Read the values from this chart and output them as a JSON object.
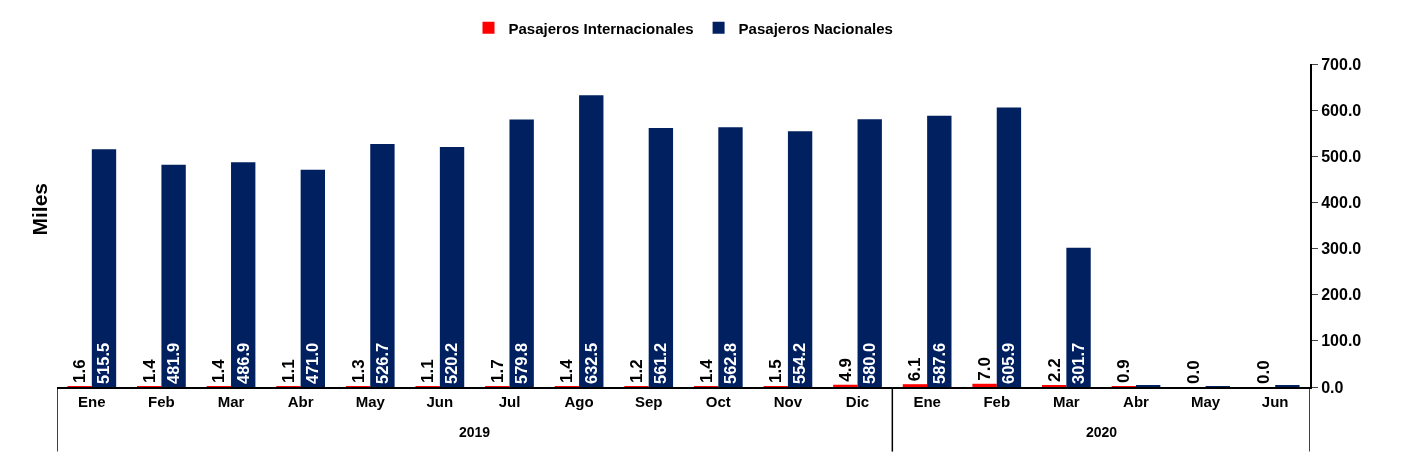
{
  "chart_data": {
    "type": "bar",
    "categories": [
      "Ene",
      "Feb",
      "Mar",
      "Abr",
      "May",
      "Jun",
      "Jul",
      "Ago",
      "Sep",
      "Oct",
      "Nov",
      "Dic",
      "Ene",
      "Feb",
      "Mar",
      "Abr",
      "May",
      "Jun"
    ],
    "series": [
      {
        "name": "Pasajeros Internacionales",
        "color": "#ff0000",
        "values": [
          1.6,
          1.4,
          1.4,
          1.1,
          1.3,
          1.1,
          1.7,
          1.4,
          1.2,
          1.4,
          1.5,
          4.9,
          6.1,
          7.0,
          2.2,
          0.9,
          0.0,
          0.0
        ],
        "value_labels": [
          "1.6",
          "1.4",
          "1.4",
          "1.1",
          "1.3",
          "1.1",
          "1.7",
          "1.4",
          "1.2",
          "1.4",
          "1.5",
          "4.9",
          "6.1",
          "7.0",
          "2.2",
          "0.9",
          "0.0",
          "0.0"
        ]
      },
      {
        "name": "Pasajeros Nacionales",
        "color": "#002060",
        "values": [
          515.5,
          481.9,
          486.9,
          471.0,
          526.7,
          520.2,
          579.8,
          632.5,
          561.2,
          562.8,
          554.2,
          580.0,
          587.6,
          605.9,
          301.7,
          3,
          2,
          4
        ],
        "value_labels": [
          "515.5",
          "481.9",
          "486.9",
          "471.0",
          "526.7",
          "520.2",
          "579.8",
          "632.5",
          "561.2",
          "562.8",
          "554.2",
          "580.0",
          "587.6",
          "605.9",
          "301.7",
          null,
          null,
          null
        ]
      }
    ],
    "ylabel": "Miles",
    "annotations": [
      "2019",
      "2020"
    ],
    "ylim": [
      0,
      700
    ],
    "yticks": [
      {
        "value": 0,
        "label": "0.0"
      },
      {
        "value": 100,
        "label": "100.0"
      },
      {
        "value": 200,
        "label": "200.0"
      },
      {
        "value": 300,
        "label": "300.0"
      },
      {
        "value": 400,
        "label": "400.0"
      },
      {
        "value": 500,
        "label": "500.0"
      },
      {
        "value": 600,
        "label": "600.0"
      },
      {
        "value": 700,
        "label": "700.0"
      }
    ],
    "legend": "top"
  }
}
